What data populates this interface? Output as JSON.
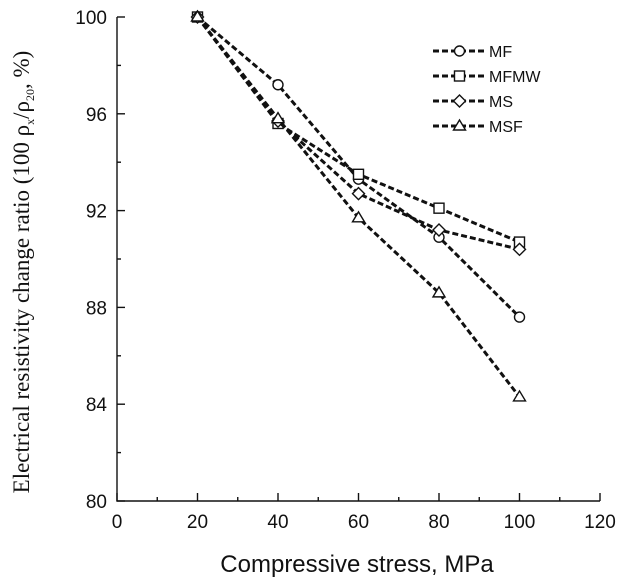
{
  "chart_data": {
    "type": "line",
    "xlabel": "Compressive stress, MPa",
    "ylabel": {
      "main": "Electrical resistivity change ratio (100 ρ",
      "sub1": "x",
      "mid": "/ρ",
      "sub2": "20",
      "end": ", %)"
    },
    "xlim": [
      0,
      120
    ],
    "ylim": [
      80,
      100
    ],
    "xticks": [
      0,
      20,
      40,
      60,
      80,
      100,
      120
    ],
    "yticks": [
      80,
      84,
      88,
      92,
      96,
      100
    ],
    "legend_position": "top-right",
    "x": [
      20,
      40,
      60,
      80,
      100
    ],
    "series": [
      {
        "name": "MF",
        "marker": "circle",
        "values": [
          100.0,
          97.2,
          93.3,
          90.9,
          87.6
        ]
      },
      {
        "name": "MFMW",
        "marker": "square",
        "values": [
          100.0,
          95.6,
          93.5,
          92.1,
          90.7
        ]
      },
      {
        "name": "MS",
        "marker": "diamond",
        "values": [
          100.0,
          95.7,
          92.7,
          91.2,
          90.4
        ]
      },
      {
        "name": "MSF",
        "marker": "triangle",
        "values": [
          100.0,
          95.8,
          91.7,
          88.6,
          84.3
        ]
      }
    ]
  }
}
